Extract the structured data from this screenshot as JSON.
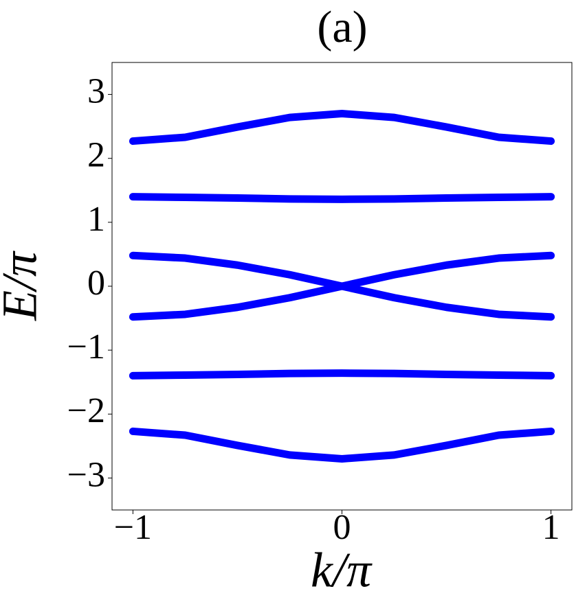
{
  "chart_data": {
    "type": "line",
    "title": "(a)",
    "x_label": "k/π",
    "y_label": "E/π",
    "x": [
      -1,
      -0.75,
      -0.5,
      -0.25,
      0,
      0.25,
      0.5,
      0.75,
      1
    ],
    "series": [
      {
        "color": "#0000ff",
        "values": [
          2.27,
          2.33,
          2.49,
          2.64,
          2.7,
          2.64,
          2.49,
          2.33,
          2.27
        ]
      },
      {
        "color": "#0000ff",
        "values": [
          1.4,
          1.39,
          1.38,
          1.365,
          1.36,
          1.365,
          1.38,
          1.39,
          1.4
        ]
      },
      {
        "color": "#0000ff",
        "values": [
          0.48,
          0.44,
          0.33,
          0.18,
          0,
          -0.18,
          -0.33,
          -0.44,
          -0.48
        ]
      },
      {
        "color": "#0000ff",
        "values": [
          -0.48,
          -0.44,
          -0.33,
          -0.18,
          0,
          0.18,
          0.33,
          0.44,
          0.48
        ]
      },
      {
        "color": "#0000ff",
        "values": [
          -1.4,
          -1.39,
          -1.38,
          -1.365,
          -1.36,
          -1.365,
          -1.38,
          -1.39,
          -1.4
        ]
      },
      {
        "color": "#0000ff",
        "values": [
          -2.27,
          -2.33,
          -2.49,
          -2.64,
          -2.7,
          -2.64,
          -2.49,
          -2.33,
          -2.27
        ]
      }
    ],
    "xlim": [
      -1.1,
      1.1
    ],
    "xticks": [
      {
        "value": -1,
        "label": "−1"
      },
      0,
      1
    ],
    "ylim": [
      -3.5,
      3.5
    ],
    "yticks": [
      {
        "value": -3,
        "label": "−3"
      },
      {
        "value": -2,
        "label": "−2"
      },
      {
        "value": -1,
        "label": "−1"
      },
      0,
      1,
      2,
      3
    ]
  }
}
